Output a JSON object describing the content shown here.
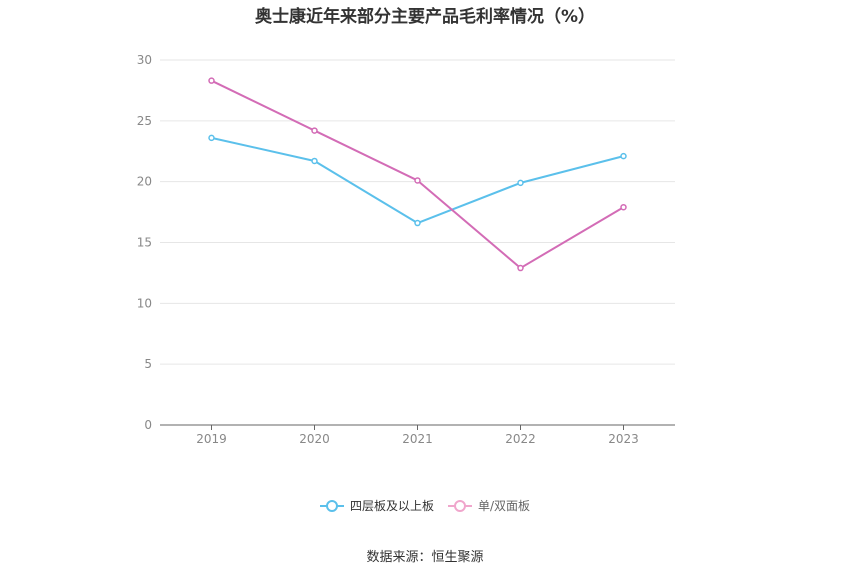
{
  "chart_data": {
    "type": "line",
    "title": "奥士康近年来部分主要产品毛利率情况（%）",
    "categories": [
      "2019",
      "2020",
      "2021",
      "2022",
      "2023"
    ],
    "series": [
      {
        "name": "四层板及以上板",
        "color": "#5bc0eb",
        "values": [
          23.6,
          21.7,
          16.6,
          19.9,
          22.1
        ]
      },
      {
        "name": "单/双面板",
        "color": "#d36cb6",
        "values": [
          28.3,
          24.2,
          20.1,
          12.9,
          17.9
        ]
      }
    ],
    "ylim": [
      0,
      30
    ],
    "yticks": [
      "0",
      "5",
      "10",
      "15",
      "20",
      "25",
      "30"
    ],
    "grid": true,
    "legend": "bottom",
    "source": "数据来源：恒生聚源"
  }
}
